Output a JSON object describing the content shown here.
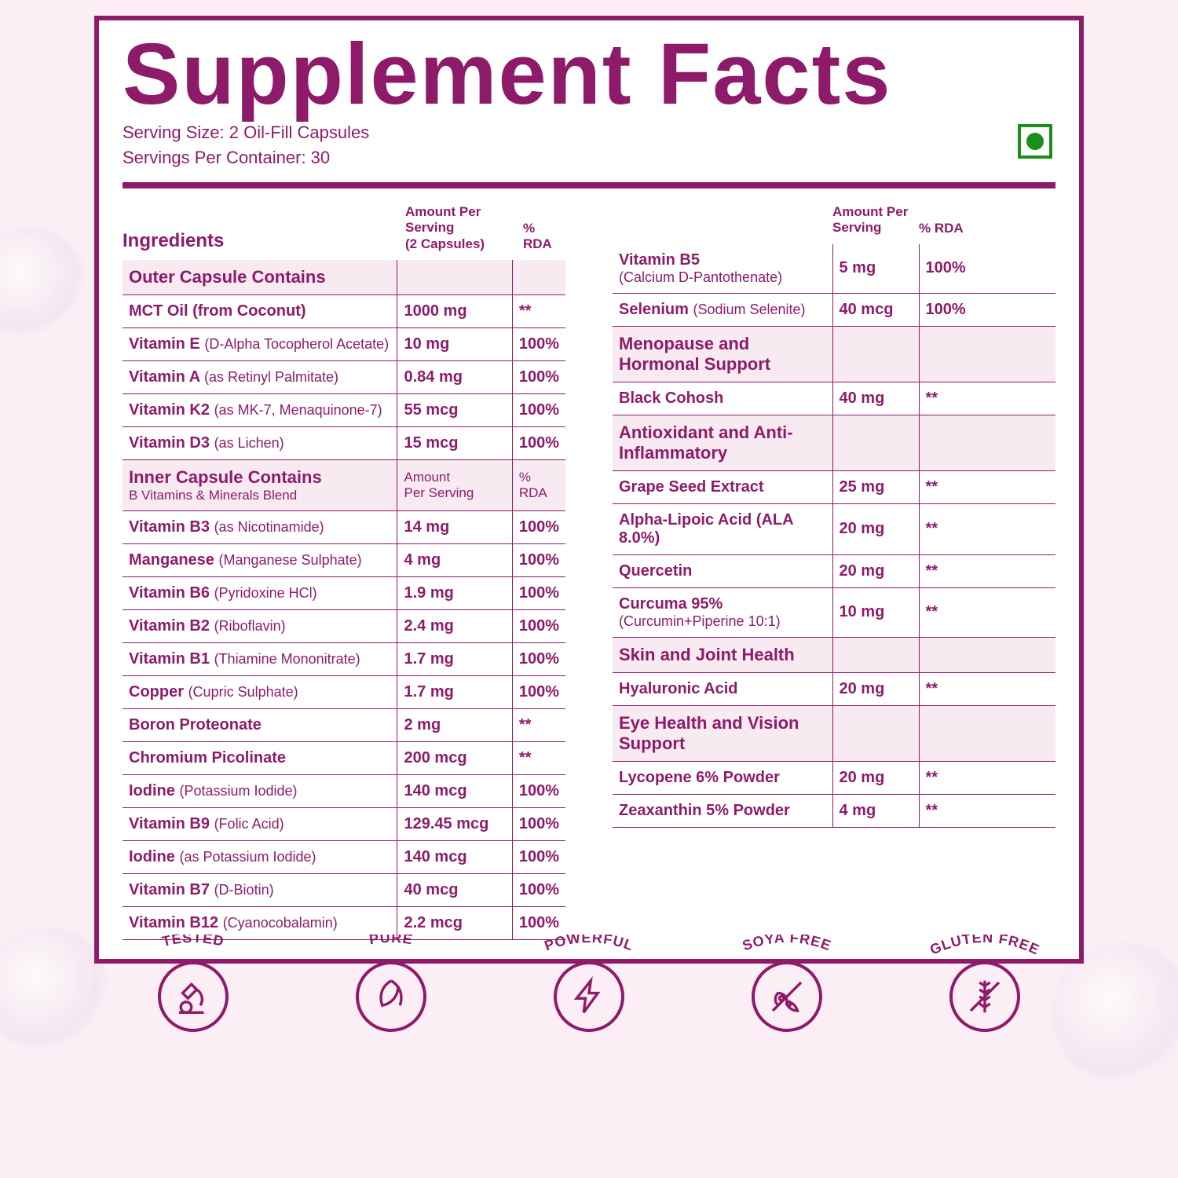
{
  "colors": {
    "accent": "#8e1b6a",
    "bg": "#fbeef5",
    "section_bg": "#f7eaf1",
    "veg": "#1a8f1a",
    "white": "#ffffff"
  },
  "title": "Supplement Facts",
  "serving_size": "Serving Size: 2 Oil-Fill Capsules",
  "servings_per": "Servings Per Container: 30",
  "head": {
    "ingredients": "Ingredients",
    "amount1": "Amount Per Serving",
    "amount1_sub": "(2 Capsules)",
    "rda": "% RDA",
    "amount2": "Amount Per",
    "amount2_b": "Serving"
  },
  "left_rows": [
    {
      "type": "section",
      "name": "Outer Capsule Contains",
      "sub": ""
    },
    {
      "name": "MCT Oil (from Coconut)",
      "sub": "",
      "amt": "1000 mg",
      "rda": "**"
    },
    {
      "name": "Vitamin E",
      "sub": "(D-Alpha Tocopherol Acetate)",
      "amt": "10 mg",
      "rda": "100%"
    },
    {
      "name": "Vitamin A",
      "sub": "(as Retinyl Palmitate)",
      "amt": "0.84 mg",
      "rda": "100%"
    },
    {
      "name": "Vitamin K2",
      "sub": "(as MK-7, Menaquinone-7)",
      "amt": "55 mcg",
      "rda": "100%"
    },
    {
      "name": "Vitamin D3",
      "sub": "(as Lichen)",
      "amt": "15 mcg",
      "rda": "100%"
    },
    {
      "type": "section",
      "name": "Inner Capsule Contains",
      "sub": "B Vitamins & Minerals Blend",
      "amt": "Amount Per Serving",
      "rda": "% RDA"
    },
    {
      "name": "Vitamin B3",
      "sub": "(as Nicotinamide)",
      "amt": "14 mg",
      "rda": "100%"
    },
    {
      "name": "Manganese",
      "sub": "(Manganese Sulphate)",
      "amt": "4 mg",
      "rda": "100%"
    },
    {
      "name": "Vitamin B6",
      "sub": "(Pyridoxine HCl)",
      "amt": "1.9 mg",
      "rda": "100%"
    },
    {
      "name": "Vitamin B2",
      "sub": "(Riboflavin)",
      "amt": "2.4 mg",
      "rda": "100%"
    },
    {
      "name": "Vitamin B1",
      "sub": "(Thiamine Mononitrate)",
      "amt": "1.7 mg",
      "rda": "100%"
    },
    {
      "name": "Copper",
      "sub": "(Cupric Sulphate)",
      "amt": "1.7 mg",
      "rda": "100%"
    },
    {
      "name": "Boron Proteonate",
      "sub": "",
      "amt": "2 mg",
      "rda": "**"
    },
    {
      "name": "Chromium Picolinate",
      "sub": "",
      "amt": "200 mcg",
      "rda": "**"
    },
    {
      "name": "Iodine",
      "sub": "(Potassium Iodide)",
      "amt": "140 mcg",
      "rda": "100%"
    },
    {
      "name": "Vitamin B9",
      "sub": "(Folic Acid)",
      "amt": "129.45 mcg",
      "rda": "100%"
    },
    {
      "name": "Iodine",
      "sub": "(as Potassium Iodide)",
      "amt": "140 mcg",
      "rda": "100%"
    },
    {
      "name": "Vitamin B7",
      "sub": "(D-Biotin)",
      "amt": "40 mcg",
      "rda": "100%"
    },
    {
      "name": "Vitamin B12",
      "sub": "(Cyanocobalamin)",
      "amt": "2.2 mcg",
      "rda": "100%"
    }
  ],
  "right_rows": [
    {
      "name": "Vitamin B5",
      "sub": "(Calcium D-Pantothenate)",
      "amt": "5 mg",
      "rda": "100%",
      "break": true
    },
    {
      "name": "Selenium",
      "sub": "(Sodium Selenite)",
      "amt": "40 mcg",
      "rda": "100%"
    },
    {
      "type": "section",
      "name": "Menopause and Hormonal Support"
    },
    {
      "name": "Black Cohosh",
      "amt": "40 mg",
      "rda": "**"
    },
    {
      "type": "section",
      "name": "Antioxidant and Anti-Inflammatory"
    },
    {
      "name": "Grape Seed Extract",
      "amt": "25 mg",
      "rda": "**"
    },
    {
      "name": "Alpha-Lipoic Acid (ALA 8.0%)",
      "amt": "20 mg",
      "rda": "**"
    },
    {
      "name": "Quercetin",
      "amt": "20 mg",
      "rda": "**"
    },
    {
      "name": "Curcuma 95%",
      "sub": "(Curcumin+Piperine 10:1)",
      "amt": "10 mg",
      "rda": "**",
      "break": true
    },
    {
      "type": "section",
      "name": "Skin and Joint Health"
    },
    {
      "name": "Hyaluronic Acid",
      "amt": "20 mg",
      "rda": "**"
    },
    {
      "type": "section",
      "name": "Eye Health and Vision Support"
    },
    {
      "name": "Lycopene 6% Powder",
      "amt": "20 mg",
      "rda": "**"
    },
    {
      "name": "Zeaxanthin 5% Powder",
      "amt": "4 mg",
      "rda": "**"
    }
  ],
  "badges": [
    "TESTED",
    "PURE",
    "POWERFUL",
    "SOYA FREE",
    "GLUTEN FREE"
  ],
  "badge_icons": [
    "microscope-icon",
    "leaf-icon",
    "bolt-icon",
    "soy-free-icon",
    "gluten-free-icon"
  ]
}
